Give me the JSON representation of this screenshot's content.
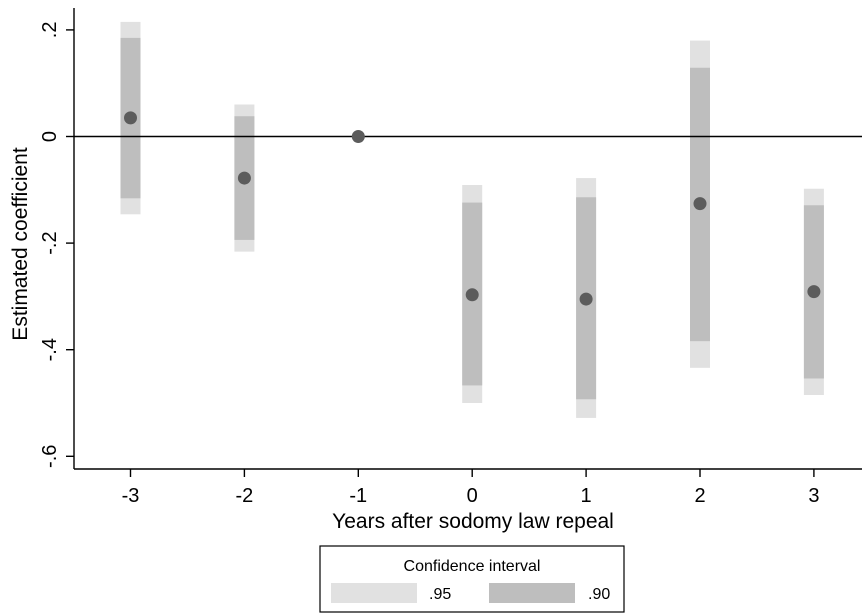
{
  "chart_data": {
    "type": "scatter",
    "xlabel": "Years after sodomy law repeal",
    "ylabel": "Estimated coefficient",
    "x": [
      -3,
      -2,
      -1,
      0,
      1,
      2,
      3
    ],
    "x_tick_labels": [
      "-3",
      "-2",
      "-1",
      "0",
      "1",
      "2",
      "3"
    ],
    "xlim": [
      -3.55,
      3.45
    ],
    "ylim": [
      -0.625,
      0.225
    ],
    "y_ticks": [
      0.2,
      0,
      -0.2,
      -0.4,
      -0.6
    ],
    "y_tick_labels": [
      ".2",
      "0",
      "-.2",
      "-.4",
      "-.6"
    ],
    "reference_line_y": 0,
    "grid": false,
    "series": [
      {
        "name": "",
        "type": "point",
        "color": "#5c5c5c",
        "values": [
          0.035,
          -0.078,
          0.0,
          -0.297,
          -0.305,
          -0.126,
          -0.291
        ]
      },
      {
        "name": ".95",
        "type": "interval",
        "color": "#e1e1e1",
        "lower": [
          -0.146,
          -0.216,
          null,
          -0.5,
          -0.528,
          -0.434,
          -0.485
        ],
        "upper": [
          0.215,
          0.06,
          null,
          -0.091,
          -0.078,
          0.18,
          -0.098
        ]
      },
      {
        "name": ".90",
        "type": "interval",
        "color": "#bebebe",
        "lower": [
          -0.116,
          -0.194,
          null,
          -0.467,
          -0.493,
          -0.384,
          -0.454
        ],
        "upper": [
          0.185,
          0.038,
          null,
          -0.124,
          -0.114,
          0.129,
          -0.129
        ]
      }
    ],
    "legend": {
      "title": "Confidence interval",
      "placement": "bottom-center",
      "entries": [
        {
          "label": ".95",
          "color": "#e1e1e1"
        },
        {
          "label": ".90",
          "color": "#bebebe"
        }
      ]
    }
  }
}
